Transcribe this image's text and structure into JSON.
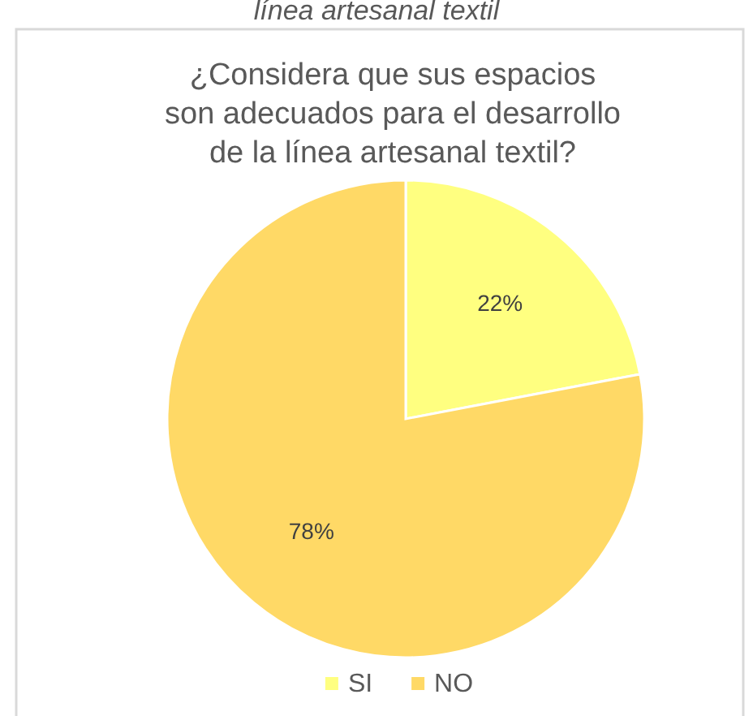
{
  "chart_data": {
    "type": "pie",
    "title": "¿Considera que sus espacios son adecuados para el desarrollo de la línea artesanal textil?",
    "annotations": [
      "línea artesanal textil"
    ],
    "categories": [
      "SI",
      "NO"
    ],
    "values": [
      22,
      78
    ],
    "colors": [
      "#ffff80",
      "#ffd966"
    ],
    "value_labels": [
      "22%",
      "78%"
    ],
    "legend": "bottom"
  }
}
